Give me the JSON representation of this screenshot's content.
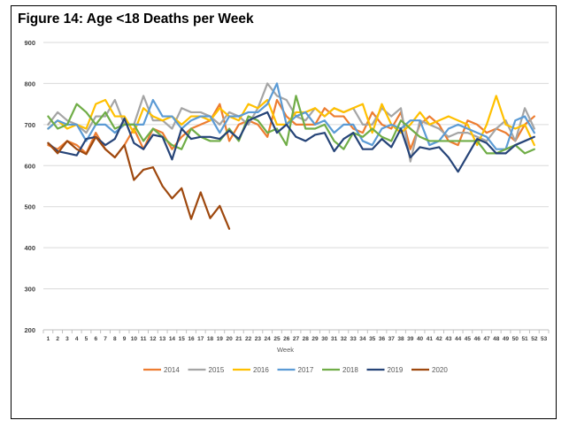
{
  "chart_data": {
    "type": "line",
    "title": "Figure 14: Age <18 Deaths per Week",
    "xlabel": "Week",
    "ylabel": "",
    "ylim": [
      200,
      900
    ],
    "yticks": [
      200,
      300,
      400,
      500,
      600,
      700,
      800,
      900
    ],
    "xticks": [
      1,
      2,
      3,
      4,
      5,
      6,
      7,
      8,
      9,
      10,
      11,
      12,
      13,
      14,
      15,
      16,
      17,
      18,
      19,
      20,
      21,
      22,
      23,
      24,
      25,
      26,
      27,
      28,
      29,
      30,
      31,
      32,
      33,
      34,
      35,
      36,
      37,
      38,
      39,
      40,
      41,
      42,
      43,
      44,
      45,
      46,
      47,
      48,
      49,
      50,
      51,
      52,
      53
    ],
    "grid": "horizontal",
    "legend_position": "bottom",
    "series": [
      {
        "name": "2014",
        "color": "#ED7D31",
        "values": [
          650,
          640,
          660,
          650,
          630,
          680,
          640,
          620,
          650,
          690,
          640,
          690,
          680,
          640,
          670,
          690,
          700,
          710,
          750,
          660,
          700,
          710,
          700,
          670,
          760,
          720,
          700,
          700,
          700,
          740,
          720,
          720,
          690,
          680,
          730,
          700,
          690,
          730,
          640,
          700,
          720,
          700,
          660,
          650,
          710,
          700,
          680,
          690,
          680,
          660,
          700,
          720
        ]
      },
      {
        "name": "2015",
        "color": "#A5A5A5",
        "values": [
          700,
          730,
          710,
          700,
          680,
          720,
          720,
          760,
          700,
          700,
          770,
          710,
          710,
          690,
          740,
          730,
          730,
          720,
          700,
          730,
          720,
          700,
          740,
          800,
          770,
          760,
          720,
          710,
          740,
          720,
          740,
          730,
          740,
          700,
          700,
          740,
          720,
          740,
          610,
          710,
          700,
          690,
          670,
          680,
          680,
          670,
          660,
          690,
          710,
          660,
          740,
          690
        ]
      },
      {
        "name": "2016",
        "color": "#FFC000",
        "values": [
          690,
          710,
          690,
          700,
          690,
          750,
          760,
          720,
          720,
          680,
          740,
          720,
          710,
          720,
          700,
          720,
          720,
          710,
          740,
          720,
          710,
          750,
          740,
          760,
          700,
          700,
          730,
          730,
          740,
          720,
          740,
          730,
          740,
          750,
          680,
          750,
          700,
          680,
          700,
          730,
          700,
          710,
          720,
          710,
          700,
          650,
          700,
          770,
          700,
          690,
          700,
          650
        ]
      },
      {
        "name": "2017",
        "color": "#5B9BD5",
        "values": [
          690,
          710,
          700,
          700,
          660,
          700,
          700,
          680,
          700,
          700,
          700,
          760,
          720,
          720,
          690,
          710,
          720,
          720,
          680,
          720,
          720,
          730,
          730,
          750,
          800,
          700,
          720,
          730,
          700,
          710,
          680,
          700,
          700,
          660,
          650,
          690,
          700,
          690,
          710,
          710,
          650,
          660,
          690,
          700,
          690,
          680,
          670,
          640,
          640,
          710,
          720,
          680
        ]
      },
      {
        "name": "2018",
        "color": "#70AD47",
        "values": [
          720,
          690,
          700,
          750,
          730,
          700,
          730,
          690,
          700,
          700,
          660,
          690,
          670,
          650,
          640,
          690,
          670,
          660,
          660,
          690,
          660,
          720,
          710,
          680,
          690,
          650,
          770,
          690,
          690,
          700,
          660,
          640,
          680,
          670,
          690,
          670,
          660,
          710,
          690,
          670,
          660,
          660,
          660,
          660,
          660,
          660,
          630,
          630,
          640,
          650,
          630,
          640
        ]
      },
      {
        "name": "2019",
        "color": "#264478",
        "values": [
          655,
          635,
          630,
          625,
          665,
          670,
          650,
          665,
          715,
          655,
          640,
          675,
          670,
          615,
          690,
          665,
          670,
          670,
          665,
          685,
          665,
          710,
          720,
          730,
          680,
          700,
          670,
          660,
          675,
          680,
          635,
          665,
          680,
          640,
          640,
          665,
          645,
          690,
          620,
          645,
          640,
          645,
          620,
          585,
          625,
          665,
          655,
          630,
          630,
          650,
          660,
          670
        ]
      },
      {
        "name": "2020",
        "color": "#9E480E",
        "values": [
          655,
          630,
          660,
          640,
          628,
          670,
          640,
          620,
          650,
          565,
          590,
          596,
          550,
          520,
          545,
          470,
          535,
          472,
          502,
          446
        ]
      }
    ]
  }
}
